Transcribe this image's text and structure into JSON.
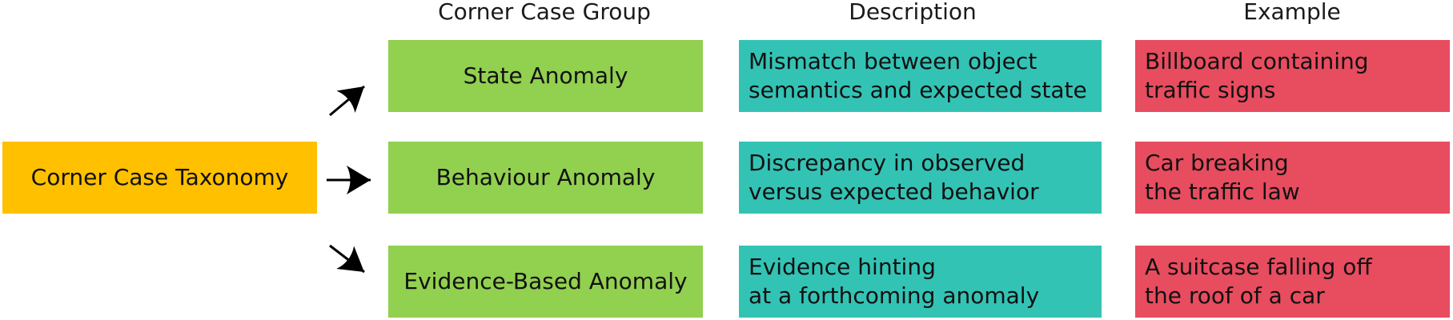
{
  "headers": {
    "group": "Corner Case Group",
    "description": "Description",
    "example": "Example"
  },
  "root": {
    "label": "Corner Case Taxonomy"
  },
  "rows": [
    {
      "group": "State Anomaly",
      "description": "Mismatch between object\nsemantics and expected state",
      "example": "Billboard containing\ntraffic signs"
    },
    {
      "group": "Behaviour Anomaly",
      "description": "Discrepancy in observed\nversus expected behavior",
      "example": "Car breaking\nthe traffic law"
    },
    {
      "group": "Evidence-Based Anomaly",
      "description": "Evidence hinting\nat a forthcoming anomaly",
      "example": "A suitcase falling off\nthe roof of a car"
    }
  ],
  "colors": {
    "root": "#ffc000",
    "group": "#92d050",
    "description": "#33c3b5",
    "example": "#e84c5f",
    "arrow": "#000000"
  },
  "icons": [
    "arrow-up-right-icon",
    "arrow-right-icon",
    "arrow-down-right-icon"
  ]
}
